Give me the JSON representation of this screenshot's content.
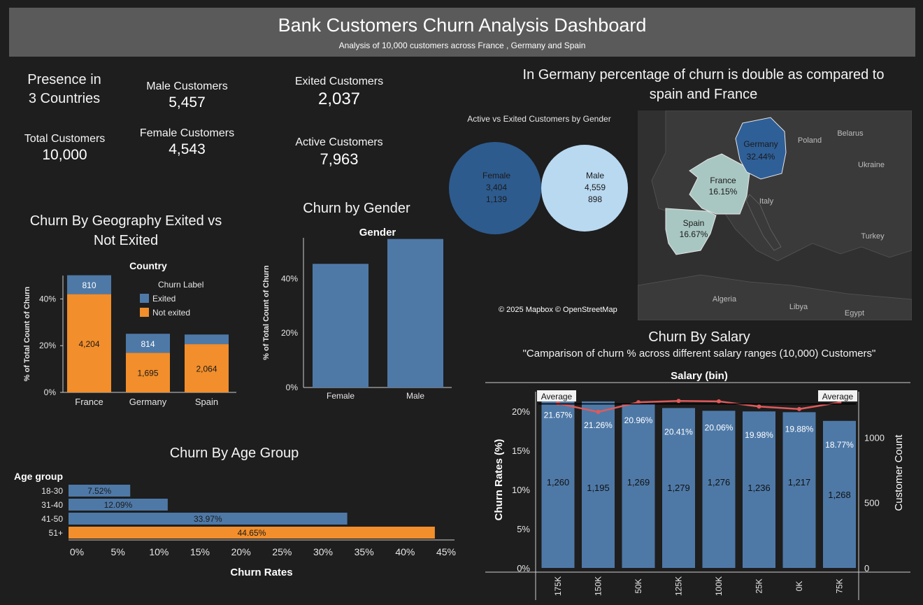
{
  "header": {
    "title": "Bank Customers Churn Analysis Dashboard",
    "subtitle": "Analysis of 10,000 customers across France , Germany and Spain"
  },
  "kpis": {
    "presence_line1": "Presence in",
    "presence_line2": "3 Countries",
    "total_label": "Total Customers",
    "total_value": "10,000",
    "male_label": "Male Customers",
    "male_value": "5,457",
    "female_label": "Female Customers",
    "female_value": "4,543",
    "exited_label": "Exited Customers",
    "exited_value": "2,037",
    "active_label": "Active Customers",
    "active_value": "7,963"
  },
  "insight": {
    "line1": "In  Germany percentage of churn is double as compared to",
    "line2": "spain and France"
  },
  "colors": {
    "exited": "#4e79a7",
    "not_exited": "#f28e2b",
    "bar_blue": "#4e79a7",
    "female_circle": "#2d5b8e",
    "male_circle": "#b9d9f1",
    "avg_line": "#e05a5a",
    "germany": "#2f5f97",
    "france_spain": "#a9c7c2",
    "header_bg": "#5a5a5a",
    "background": "#1e1e1e"
  },
  "map": {
    "credit": "© 2025 Mapbox © OpenStreetMap",
    "germany_label": "Germany",
    "germany_value": "32.44%",
    "france_label": "France",
    "france_value": "16.15%",
    "spain_label": "Spain",
    "spain_value": "16.67%",
    "poland": "Poland",
    "belarus": "Belarus",
    "ukraine": "Ukraine",
    "italy": "Italy",
    "turkey": "Turkey",
    "algeria": "Algeria",
    "libya": "Libya",
    "egypt": "Egypt"
  },
  "chart_data": [
    {
      "type": "bar",
      "id": "geography",
      "title": "Churn By Geography Exited vs Not Exited",
      "title_line1": "Churn By Geography Exited vs",
      "title_line2": "Not Exited",
      "column_header": "Country",
      "ylabel": "% of Total Count of Churn",
      "yticks": [
        "0%",
        "20%",
        "40%"
      ],
      "ylim": [
        0,
        50
      ],
      "legend_title": "Churn Label",
      "legend_placement": "top-right",
      "categories": [
        "France",
        "Germany",
        "Spain"
      ],
      "series": [
        {
          "name": "Not exited",
          "values": [
            42.04,
            16.95,
            20.64
          ],
          "labels": [
            "4,204",
            "1,695",
            "2,064"
          ]
        },
        {
          "name": "Exited",
          "values": [
            8.1,
            8.14,
            4.13
          ],
          "labels": [
            "810",
            "814",
            ""
          ]
        }
      ]
    },
    {
      "type": "bar",
      "id": "gender",
      "title": "Churn by Gender",
      "column_header": "Gender",
      "ylabel": "% of Total Count of Churn",
      "yticks": [
        "0%",
        "20%",
        "40%"
      ],
      "ylim": [
        0,
        55
      ],
      "categories": [
        "Female",
        "Male"
      ],
      "values": [
        45.43,
        54.57
      ]
    },
    {
      "type": "bar",
      "id": "venn",
      "title": "Active vs Exited Customers by Gender",
      "categories": [
        "Female",
        "Male"
      ],
      "series": [
        {
          "name": "Active",
          "values": [
            3404,
            4559
          ],
          "labels": [
            "3,404",
            "4,559"
          ]
        },
        {
          "name": "Exited",
          "values": [
            1139,
            898
          ],
          "labels": [
            "1,139",
            "898"
          ]
        }
      ]
    },
    {
      "type": "bar",
      "id": "age",
      "title": "Churn By Age Group",
      "row_header": "Age group",
      "xlabel": "Churn Rates",
      "xticks": [
        "0%",
        "5%",
        "10%",
        "15%",
        "20%",
        "25%",
        "30%",
        "35%",
        "40%",
        "45%"
      ],
      "xlim": [
        0,
        45
      ],
      "categories": [
        "18-30",
        "31-40",
        "41-50",
        "51+"
      ],
      "values": [
        7.52,
        12.09,
        33.97,
        44.65
      ],
      "labels": [
        "7.52%",
        "12.09%",
        "33.97%",
        "44.65%"
      ],
      "highlight": [
        false,
        false,
        false,
        true
      ]
    },
    {
      "type": "bar",
      "id": "salary",
      "title": "Churn By Salary",
      "subtitle": "\"Camparison of churn % across different salary ranges (10,000) Customers\"",
      "column_header": "Salary (bin)",
      "ylabel": "Churn Rates (%)",
      "y2label": "Customer Count",
      "yticks": [
        "0%",
        "5%",
        "10%",
        "15%",
        "20%"
      ],
      "y2ticks": [
        "0",
        "500",
        "1000"
      ],
      "ylim": [
        0,
        22.5
      ],
      "y2lim": [
        0,
        1350
      ],
      "average_label": "Average",
      "categories": [
        "175K",
        "150K",
        "50K",
        "125K",
        "100K",
        "25K",
        "0K",
        "75K"
      ],
      "churn_rates": [
        21.67,
        21.26,
        20.96,
        20.41,
        20.06,
        19.98,
        19.88,
        18.77
      ],
      "rate_labels": [
        "21.67%",
        "21.26%",
        "20.96%",
        "20.41%",
        "20.06%",
        "19.98%",
        "19.88%",
        "18.77%"
      ],
      "customer_counts": [
        1260,
        1195,
        1269,
        1279,
        1276,
        1236,
        1217,
        1268
      ],
      "count_labels": [
        "1,260",
        "1,195",
        "1,269",
        "1,279",
        "1,276",
        "1,236",
        "1,217",
        "1,268"
      ]
    }
  ]
}
